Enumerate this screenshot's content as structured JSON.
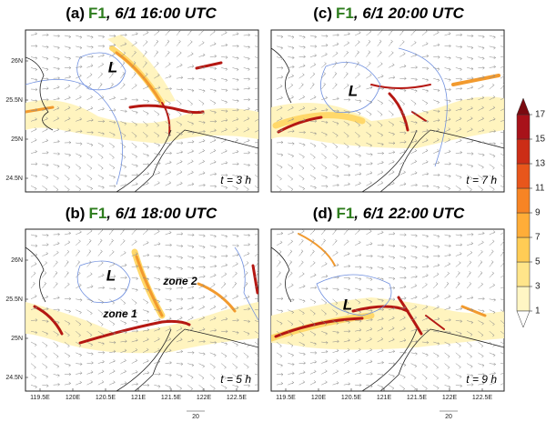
{
  "panels": [
    {
      "label": "(a)",
      "model": "F1",
      "time": ", 6/1 16:00 UTC",
      "low": "L",
      "elapsed": "t = 3 h"
    },
    {
      "label": "(c)",
      "model": "F1",
      "time": ", 6/1 20:00 UTC",
      "low": "L",
      "elapsed": "t = 7 h"
    },
    {
      "label": "(b)",
      "model": "F1",
      "time": ", 6/1 18:00 UTC",
      "low": "L",
      "elapsed": "t = 5 h",
      "zones": [
        "zone 1",
        "zone 2"
      ]
    },
    {
      "label": "(d)",
      "model": "F1",
      "time": ", 6/1 22:00 UTC",
      "low": "L",
      "elapsed": "t = 9 h"
    }
  ],
  "latitude_labels": [
    "26N",
    "25.5N",
    "25N",
    "24.5N"
  ],
  "longitude_labels": [
    "119.5E",
    "120E",
    "120.5E",
    "121E",
    "121.5E",
    "122E",
    "122.5E"
  ],
  "reference_vector": "20",
  "colorbar": {
    "ticks": [
      1,
      3,
      5,
      7,
      9,
      11,
      13,
      15,
      17
    ],
    "range": [
      1,
      17
    ],
    "colors": [
      "#ffffff",
      "#fff6c4",
      "#ffe58a",
      "#ffcc55",
      "#ffad38",
      "#f78424",
      "#e8561b",
      "#cc2d16",
      "#a8121a",
      "#7a0a10"
    ]
  }
}
